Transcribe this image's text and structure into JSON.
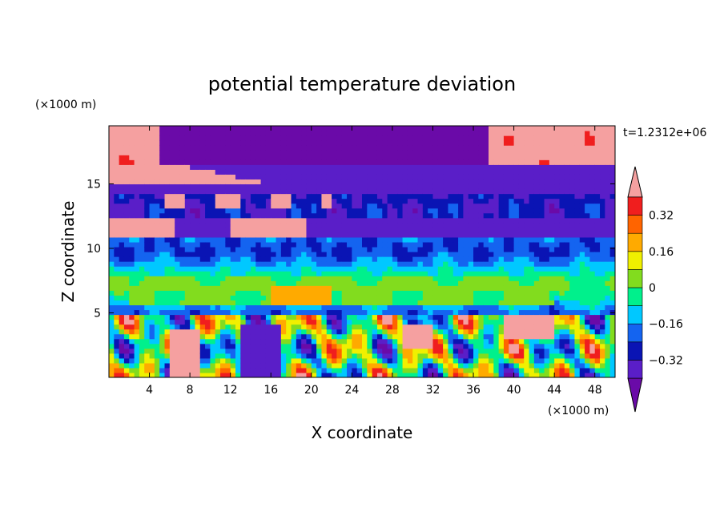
{
  "chart_data": {
    "type": "heatmap",
    "title": "potential temperature deviation",
    "xlabel": "X coordinate",
    "ylabel": "Z coordinate",
    "x_unit": "(×1000 m)",
    "y_unit": "(×1000 m)",
    "time_label": "t=1.2312e+06",
    "xlim": [
      0,
      50
    ],
    "ylim": [
      0,
      19.5
    ],
    "x_ticks": [
      "4",
      "8",
      "12",
      "16",
      "20",
      "24",
      "28",
      "32",
      "36",
      "40",
      "44",
      "48"
    ],
    "x_tick_values": [
      4,
      8,
      12,
      16,
      20,
      24,
      28,
      32,
      36,
      40,
      44,
      48
    ],
    "y_ticks": [
      "5",
      "10",
      "15"
    ],
    "y_tick_values": [
      5,
      10,
      15
    ],
    "colorbar": {
      "levels": [
        -0.4,
        -0.32,
        -0.24,
        -0.16,
        -0.08,
        0,
        0.08,
        0.16,
        0.24,
        0.32,
        0.4
      ],
      "labels": [
        "0.32",
        "0.16",
        "0",
        "−0.16",
        "−0.32"
      ],
      "label_values": [
        0.32,
        0.16,
        0,
        -0.16,
        -0.32
      ],
      "colors": [
        "#6a0aa8",
        "#5a1ec8",
        "#0a14b4",
        "#1464f0",
        "#00c8ff",
        "#00f08c",
        "#82dc1e",
        "#f0f000",
        "#ffaa00",
        "#ff6400",
        "#f01e1e",
        "#f5a0a0"
      ],
      "extend": "both"
    }
  }
}
